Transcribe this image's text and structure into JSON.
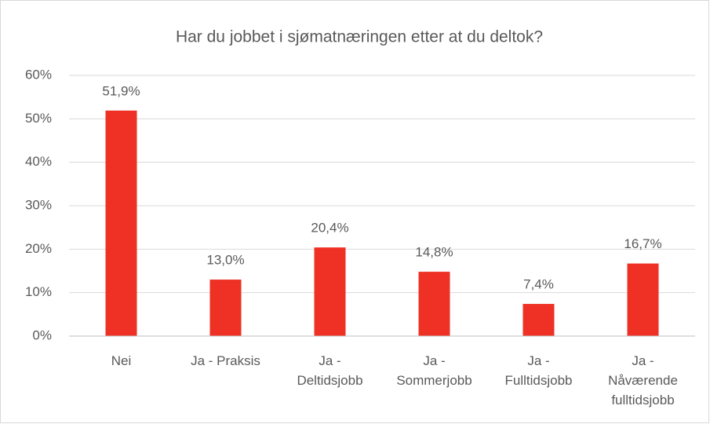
{
  "chart_data": {
    "type": "bar",
    "title": "Har du jobbet i sjømatnæringen etter at du deltok?",
    "categories": [
      "Nei",
      "Ja - Praksis",
      "Ja - Deltidsjobb",
      "Ja - Sommerjobb",
      "Ja - Fulltidsjobb",
      "Ja - Nåværende fulltidsjobb"
    ],
    "values": [
      51.9,
      13.0,
      20.4,
      14.8,
      7.4,
      16.7
    ],
    "value_labels": [
      "51,9%",
      "13,0%",
      "20,4%",
      "14,8%",
      "7,4%",
      "16,7%"
    ],
    "color": "#ee3124",
    "ylim": [
      0,
      60
    ],
    "yticks": [
      {
        "value": 0,
        "label": "0%"
      },
      {
        "value": 10,
        "label": "10%"
      },
      {
        "value": 20,
        "label": "20%"
      },
      {
        "value": 30,
        "label": "30%"
      },
      {
        "value": 40,
        "label": "40%"
      },
      {
        "value": 50,
        "label": "50%"
      },
      {
        "value": 60,
        "label": "60%"
      }
    ],
    "grid": true
  }
}
